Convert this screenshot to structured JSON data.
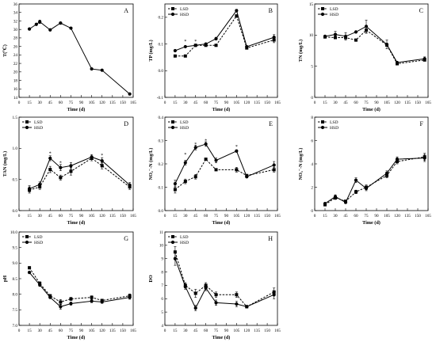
{
  "chart_data": [
    {
      "panel_letter": "A",
      "type": "line",
      "ylabel": "T(℃)",
      "xlabel": "Time (d)",
      "xlim": [
        0,
        165
      ],
      "ylim": [
        14,
        36
      ],
      "xticks": [
        0,
        15,
        30,
        45,
        60,
        75,
        90,
        105,
        120,
        135,
        150,
        165
      ],
      "yticks": [
        14,
        16,
        18,
        20,
        22,
        24,
        26,
        28,
        30,
        32,
        34,
        36
      ],
      "legend": null,
      "grid": false,
      "series": [
        {
          "name": "",
          "style": "solid",
          "x": [
            15,
            25,
            30,
            45,
            60,
            75,
            105,
            120,
            160
          ],
          "y": [
            30.1,
            31.2,
            31.8,
            29.9,
            31.5,
            30.3,
            20.7,
            20.4,
            14.8
          ],
          "err": [
            0,
            0,
            0.4,
            0,
            0,
            0,
            0,
            0,
            0
          ]
        }
      ]
    },
    {
      "panel_letter": "B",
      "type": "line",
      "ylabel": "TP (mg/L)",
      "xlabel": "Time (d)",
      "xlim": [
        0,
        165
      ],
      "ylim": [
        -0.1,
        0.25
      ],
      "xticks": [
        0,
        15,
        30,
        45,
        60,
        75,
        90,
        105,
        120,
        135,
        150,
        165
      ],
      "yticks": [
        -0.1,
        0.0,
        0.1,
        0.2
      ],
      "legend": "top-left",
      "grid": false,
      "annotations": [
        {
          "text": "*",
          "x": 30,
          "y": 0.11
        },
        {
          "text": "*",
          "x": 45,
          "y": 0.11
        }
      ],
      "series": [
        {
          "name": "LSD",
          "style": "dashed",
          "x": [
            15,
            30,
            45,
            60,
            75,
            105,
            120,
            160
          ],
          "y": [
            0.055,
            0.055,
            0.095,
            0.095,
            0.095,
            0.205,
            0.085,
            0.115
          ],
          "err": [
            0,
            0,
            0,
            0,
            0,
            0.005,
            0,
            0.01
          ]
        },
        {
          "name": "HSD",
          "style": "solid",
          "x": [
            15,
            30,
            45,
            60,
            75,
            105,
            120,
            160
          ],
          "y": [
            0.075,
            0.09,
            0.095,
            0.1,
            0.12,
            0.225,
            0.09,
            0.125
          ],
          "err": [
            0,
            0,
            0,
            0,
            0.005,
            0.005,
            0,
            0.01
          ]
        }
      ]
    },
    {
      "panel_letter": "C",
      "type": "line",
      "ylabel": "TN (mg/L)",
      "xlabel": "Time (d)",
      "xlim": [
        0,
        165
      ],
      "ylim": [
        0,
        15
      ],
      "xticks": [
        0,
        15,
        30,
        45,
        60,
        75,
        90,
        105,
        120,
        135,
        150,
        165
      ],
      "yticks": [
        0,
        5,
        10,
        15
      ],
      "legend": "top-left",
      "grid": false,
      "annotations": [],
      "series": [
        {
          "name": "LSD",
          "style": "dashed",
          "x": [
            15,
            30,
            45,
            60,
            75,
            105,
            120,
            160
          ],
          "y": [
            9.7,
            9.6,
            9.6,
            9.2,
            10.8,
            8.4,
            5.4,
            6.0
          ],
          "err": [
            0,
            0,
            0,
            0,
            0.5,
            0,
            0,
            0
          ]
        },
        {
          "name": "HSD",
          "style": "solid",
          "x": [
            15,
            30,
            45,
            60,
            75,
            105,
            120,
            160
          ],
          "y": [
            9.8,
            10.1,
            9.8,
            10.5,
            11.4,
            8.5,
            5.6,
            6.2
          ],
          "err": [
            0,
            0.5,
            0.6,
            0,
            1.0,
            0.7,
            0,
            0.3
          ]
        }
      ]
    },
    {
      "panel_letter": "D",
      "type": "line",
      "ylabel": "TAN (mg/L)",
      "xlabel": "Time (d)",
      "xlim": [
        0,
        165
      ],
      "ylim": [
        0,
        1.5
      ],
      "xticks": [
        0,
        15,
        30,
        45,
        60,
        75,
        90,
        105,
        120,
        135,
        150,
        165
      ],
      "yticks": [
        0.0,
        0.5,
        1.0,
        1.5
      ],
      "legend": "top-left",
      "grid": false,
      "annotations": [
        {
          "text": "*",
          "x": 45,
          "y": 0.92
        },
        {
          "text": "*",
          "x": 60,
          "y": 0.77
        },
        {
          "text": "*",
          "x": 120,
          "y": 0.89
        }
      ],
      "series": [
        {
          "name": "LSD",
          "style": "dashed",
          "x": [
            15,
            30,
            45,
            60,
            75,
            105,
            120,
            160
          ],
          "y": [
            0.33,
            0.38,
            0.66,
            0.53,
            0.63,
            0.84,
            0.72,
            0.38
          ],
          "err": [
            0.05,
            0.04,
            0.05,
            0.04,
            0.06,
            0.04,
            0.05,
            0.04
          ]
        },
        {
          "name": "HSD",
          "style": "solid",
          "x": [
            15,
            30,
            45,
            60,
            75,
            105,
            120,
            160
          ],
          "y": [
            0.35,
            0.42,
            0.84,
            0.69,
            0.72,
            0.86,
            0.8,
            0.41
          ],
          "err": [
            0.05,
            0.04,
            0.04,
            0.05,
            0.05,
            0.04,
            0.05,
            0.04
          ]
        }
      ]
    },
    {
      "panel_letter": "E",
      "type": "line",
      "ylabel": "NO₂⁻-N (mg/L)",
      "xlabel": "Time (d)",
      "xlim": [
        0,
        165
      ],
      "ylim": [
        0,
        0.4
      ],
      "xticks": [
        0,
        15,
        30,
        45,
        60,
        75,
        90,
        105,
        120,
        135,
        150,
        165
      ],
      "yticks": [
        0.0,
        0.1,
        0.2,
        0.3,
        0.4
      ],
      "legend": "top-left",
      "grid": false,
      "annotations": [
        {
          "text": "*",
          "x": 30,
          "y": 0.24
        },
        {
          "text": "*",
          "x": 45,
          "y": 0.285
        },
        {
          "text": "*",
          "x": 60,
          "y": 0.3
        },
        {
          "text": "*",
          "x": 105,
          "y": 0.275
        }
      ],
      "series": [
        {
          "name": "LSD",
          "style": "dashed",
          "x": [
            15,
            30,
            45,
            60,
            75,
            105,
            120,
            160
          ],
          "y": [
            0.09,
            0.125,
            0.145,
            0.22,
            0.175,
            0.175,
            0.15,
            0.175
          ],
          "err": [
            0.015,
            0.01,
            0.01,
            0,
            0,
            0.01,
            0.005,
            0.01
          ]
        },
        {
          "name": "HSD",
          "style": "solid",
          "x": [
            15,
            30,
            45,
            60,
            75,
            105,
            120,
            160
          ],
          "y": [
            0.115,
            0.205,
            0.27,
            0.285,
            0.215,
            0.255,
            0.145,
            0.195
          ],
          "err": [
            0.015,
            0.01,
            0.01,
            0.01,
            0.01,
            0.005,
            0.005,
            0.015
          ]
        }
      ]
    },
    {
      "panel_letter": "F",
      "type": "line",
      "ylabel": "NO₃⁻-N (mg/L)",
      "xlabel": "Time (d)",
      "xlim": [
        0,
        165
      ],
      "ylim": [
        0,
        8
      ],
      "xticks": [
        0,
        15,
        30,
        45,
        60,
        75,
        90,
        105,
        120,
        135,
        150,
        165
      ],
      "yticks": [
        0,
        2,
        4,
        6,
        8
      ],
      "legend": "top-left",
      "grid": false,
      "annotations": [],
      "series": [
        {
          "name": "LSD",
          "style": "dashed",
          "x": [
            15,
            30,
            45,
            60,
            75,
            105,
            120,
            160
          ],
          "y": [
            0.5,
            1.1,
            0.8,
            1.6,
            2.0,
            3.0,
            4.2,
            4.6
          ],
          "err": [
            0,
            0.15,
            0.1,
            0.15,
            0.2,
            0.2,
            0.2,
            0.3
          ]
        },
        {
          "name": "HSD",
          "style": "solid",
          "x": [
            15,
            30,
            45,
            60,
            75,
            105,
            120,
            160
          ],
          "y": [
            0.6,
            1.2,
            0.7,
            2.6,
            1.9,
            3.2,
            4.4,
            4.5
          ],
          "err": [
            0,
            0.15,
            0.1,
            0.2,
            0.2,
            0.2,
            0.2,
            0.3
          ]
        }
      ]
    },
    {
      "panel_letter": "G",
      "type": "line",
      "ylabel": "pH",
      "xlabel": "Time (d)",
      "xlim": [
        0,
        165
      ],
      "ylim": [
        7.0,
        10.0
      ],
      "xticks": [
        0,
        15,
        30,
        45,
        60,
        75,
        90,
        105,
        120,
        135,
        150,
        165
      ],
      "yticks": [
        7.0,
        7.5,
        8.0,
        8.5,
        9.0,
        9.5,
        10.0
      ],
      "legend": "top-left",
      "grid": false,
      "annotations": [],
      "series": [
        {
          "name": "LSD",
          "style": "dashed",
          "x": [
            15,
            30,
            45,
            60,
            75,
            105,
            120,
            160
          ],
          "y": [
            8.85,
            8.35,
            7.95,
            7.75,
            7.85,
            7.9,
            7.8,
            7.95
          ],
          "err": [
            0.04,
            0.05,
            0.04,
            0.08,
            0.05,
            0.05,
            0.04,
            0.06
          ]
        },
        {
          "name": "HSD",
          "style": "solid",
          "x": [
            15,
            30,
            45,
            60,
            75,
            105,
            120,
            160
          ],
          "y": [
            8.7,
            8.3,
            7.9,
            7.6,
            7.7,
            7.78,
            7.75,
            7.9
          ],
          "err": [
            0.04,
            0.05,
            0.04,
            0.08,
            0.05,
            0.05,
            0.04,
            0.06
          ]
        }
      ]
    },
    {
      "panel_letter": "H",
      "type": "line",
      "ylabel": "DO",
      "xlabel": "Time (d)",
      "xlim": [
        0,
        165
      ],
      "ylim": [
        4,
        11
      ],
      "xticks": [
        0,
        15,
        30,
        45,
        60,
        75,
        90,
        105,
        120,
        135,
        150,
        165
      ],
      "yticks": [
        4,
        5,
        6,
        7,
        8,
        9,
        10,
        11
      ],
      "legend": "top-left",
      "grid": false,
      "annotations": [],
      "series": [
        {
          "name": "LSD",
          "style": "dashed",
          "x": [
            15,
            30,
            45,
            60,
            75,
            105,
            120,
            160
          ],
          "y": [
            9.5,
            7.0,
            6.4,
            7.0,
            6.3,
            6.3,
            5.4,
            6.5
          ],
          "err": [
            0.4,
            0.2,
            0.3,
            0.2,
            0.2,
            0.2,
            0.1,
            0.3
          ]
        },
        {
          "name": "HSD",
          "style": "solid",
          "x": [
            15,
            30,
            45,
            60,
            75,
            105,
            120,
            160
          ],
          "y": [
            9.0,
            6.9,
            5.3,
            6.8,
            5.7,
            5.6,
            5.4,
            6.3
          ],
          "err": [
            0.5,
            0.2,
            0.2,
            0.2,
            0.2,
            0.2,
            0.1,
            0.3
          ]
        }
      ]
    }
  ]
}
